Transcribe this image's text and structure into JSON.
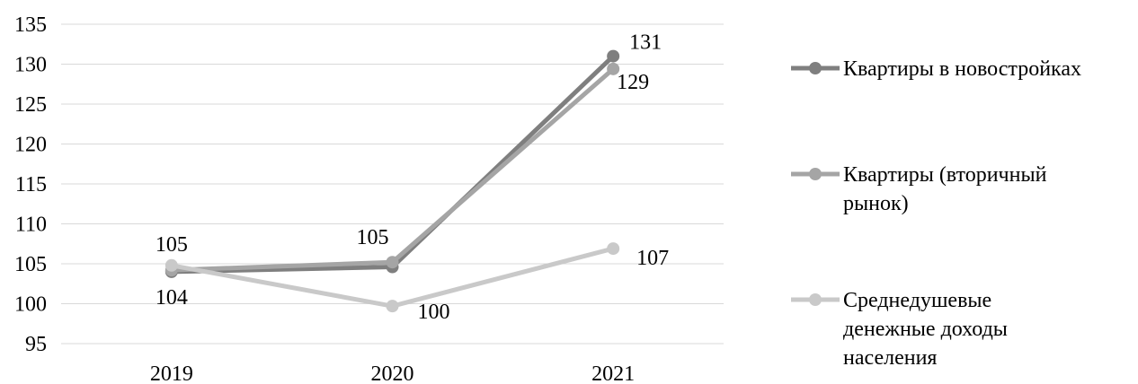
{
  "chart_data": {
    "type": "line",
    "categories": [
      "2019",
      "2020",
      "2021"
    ],
    "ylim": [
      95,
      135
    ],
    "ytick_step": 5,
    "grid": true,
    "legend_position": "right",
    "title": "",
    "xlabel": "",
    "ylabel": "",
    "series": [
      {
        "name": "Квартиры в новостройках",
        "legend_lines": [
          "Квартиры в новостройках"
        ],
        "values": [
          104,
          104.6,
          131
        ],
        "color": "#7f7f7f",
        "data_labels": [
          "104",
          "",
          "131"
        ]
      },
      {
        "name": "Квартиры (вторичный рынок)",
        "legend_lines": [
          "Квартиры (вторичный",
          "рынок)"
        ],
        "values": [
          104.2,
          105.2,
          129.4
        ],
        "color": "#a5a5a5",
        "data_labels": [
          "",
          "105",
          "129"
        ]
      },
      {
        "name": "Среднедушевые денежные доходы населения",
        "legend_lines": [
          "Среднедушевые",
          "денежные доходы",
          "населения"
        ],
        "values": [
          104.8,
          99.7,
          106.9
        ],
        "color": "#c9c9c9",
        "data_labels": [
          "105",
          "100",
          "107"
        ]
      }
    ]
  }
}
